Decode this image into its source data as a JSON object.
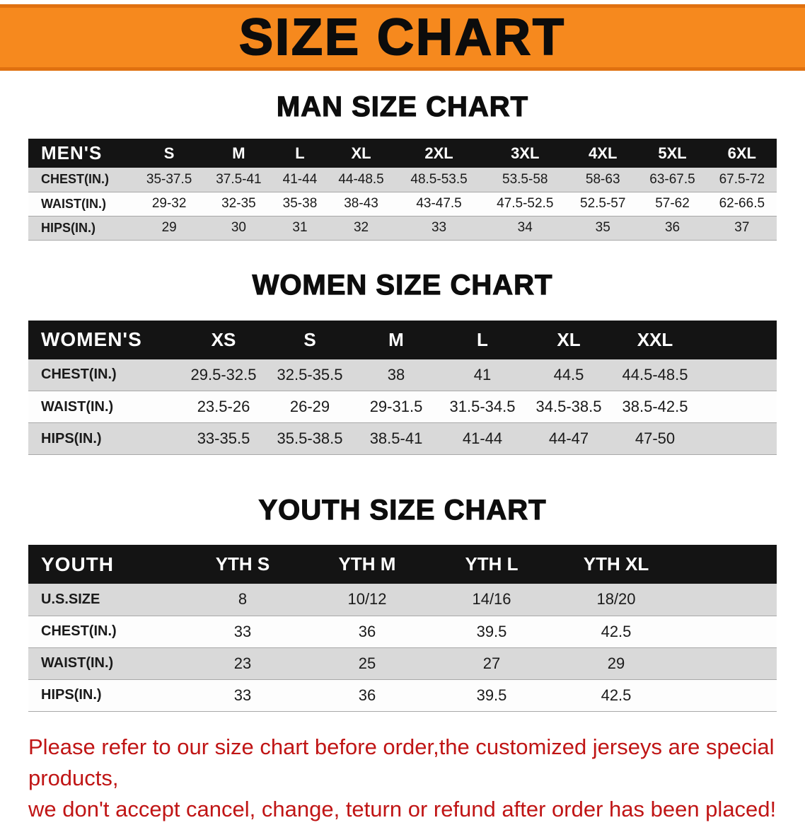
{
  "banner": {
    "title": "SIZE CHART",
    "bg_color": "#f6891e"
  },
  "chart_data": [
    {
      "type": "table",
      "title": "MAN SIZE CHART",
      "header": [
        "MEN'S",
        "S",
        "M",
        "L",
        "XL",
        "2XL",
        "3XL",
        "4XL",
        "5XL",
        "6XL"
      ],
      "rows": [
        [
          "CHEST(IN.)",
          "35-37.5",
          "37.5-41",
          "41-44",
          "44-48.5",
          "48.5-53.5",
          "53.5-58",
          "58-63",
          "63-67.5",
          "67.5-72"
        ],
        [
          "WAIST(IN.)",
          "29-32",
          "32-35",
          "35-38",
          "38-43",
          "43-47.5",
          "47.5-52.5",
          "52.5-57",
          "57-62",
          "62-66.5"
        ],
        [
          "HIPS(IN.)",
          "29",
          "30",
          "31",
          "32",
          "33",
          "34",
          "35",
          "36",
          "37"
        ]
      ]
    },
    {
      "type": "table",
      "title": "WOMEN SIZE CHART",
      "header": [
        "WOMEN'S",
        "XS",
        "S",
        "M",
        "L",
        "XL",
        "XXL"
      ],
      "rows": [
        [
          "CHEST(IN.)",
          "29.5-32.5",
          "32.5-35.5",
          "38",
          "41",
          "44.5",
          "44.5-48.5"
        ],
        [
          "WAIST(IN.)",
          "23.5-26",
          "26-29",
          "29-31.5",
          "31.5-34.5",
          "34.5-38.5",
          "38.5-42.5"
        ],
        [
          "HIPS(IN.)",
          "33-35.5",
          "35.5-38.5",
          "38.5-41",
          "41-44",
          "44-47",
          "47-50"
        ]
      ]
    },
    {
      "type": "table",
      "title": "YOUTH SIZE CHART",
      "header": [
        "YOUTH",
        "YTH S",
        "YTH M",
        "YTH L",
        "YTH XL"
      ],
      "rows": [
        [
          "U.S.SIZE",
          "8",
          "10/12",
          "14/16",
          "18/20"
        ],
        [
          "CHEST(IN.)",
          "33",
          "36",
          "39.5",
          "42.5"
        ],
        [
          "WAIST(IN.)",
          "23",
          "25",
          "27",
          "29"
        ],
        [
          "HIPS(IN.)",
          "33",
          "36",
          "39.5",
          "42.5"
        ]
      ]
    }
  ],
  "footer": {
    "line1": "Please refer to our size chart before order,the customized jerseys are special products,",
    "line2": "we don't accept cancel, change, teturn or refund after order has been placed!",
    "text_color": "#c01515"
  }
}
